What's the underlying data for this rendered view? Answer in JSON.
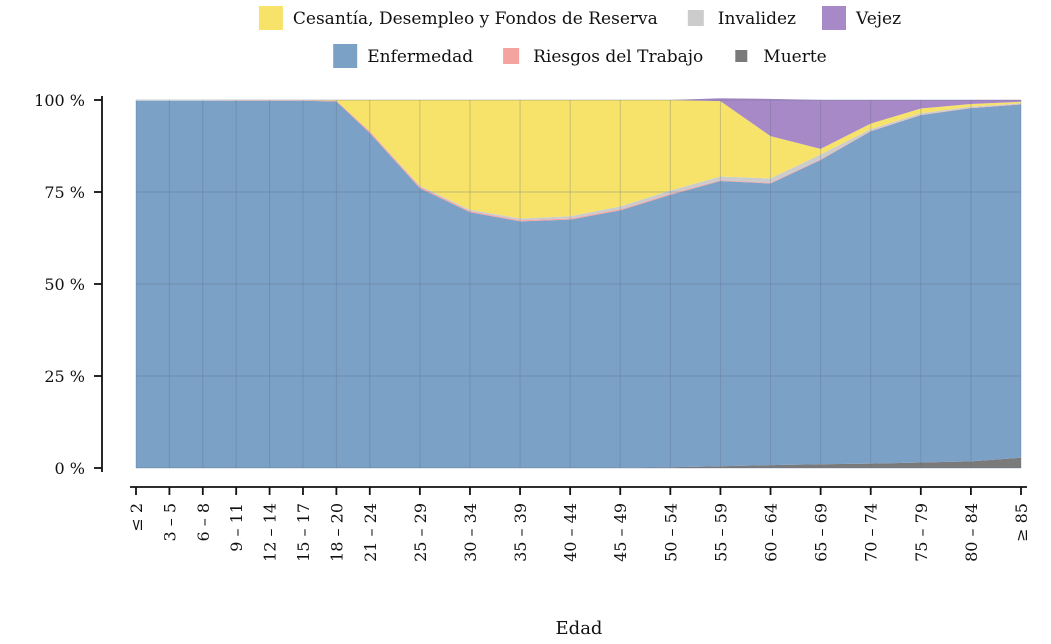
{
  "chart_data": {
    "type": "area",
    "xlabel": "Edad",
    "ylabel": "",
    "ylim": [
      0,
      100
    ],
    "y_ticks": [
      "0 %",
      "25 %",
      "50 %",
      "75 %",
      "100 %"
    ],
    "y_tick_values": [
      0,
      25,
      50,
      75,
      100
    ],
    "grid": true,
    "legend_position": "top",
    "categories": [
      "≤ 2",
      "3 – 5",
      "6 – 8",
      "9 – 11",
      "12 – 14",
      "15 – 17",
      "18 – 20",
      "21 – 24",
      "25 – 29",
      "30 – 34",
      "35 – 39",
      "40 – 44",
      "45 – 49",
      "50 – 54",
      "55 – 59",
      "60 – 64",
      "65 – 69",
      "70 – 74",
      "75 – 79",
      "80 – 84",
      "≥ 85"
    ],
    "x_positions": [
      0,
      1,
      2,
      3,
      4,
      5,
      6,
      7,
      8.5,
      10,
      11.5,
      13,
      14.5,
      16,
      17.5,
      19,
      20.5,
      22,
      23.5,
      25,
      26.5
    ],
    "legend_rows": [
      [
        "Cesantía, Desempleo y Fondos de Reserva",
        "Invalidez",
        "Vejez"
      ],
      [
        "Enfermedad",
        "Riesgos del Trabajo",
        "Muerte"
      ]
    ],
    "series": [
      {
        "name": "Muerte",
        "color": "#7a7a7a",
        "values": [
          0,
          0,
          0,
          0,
          0,
          0,
          0,
          0,
          0,
          0,
          0,
          0,
          0,
          0.2,
          0.5,
          0.8,
          1,
          1.2,
          1.5,
          1.8,
          2.8
        ]
      },
      {
        "name": "Enfermedad",
        "color": "#7ba1c7",
        "values": [
          99.8,
          99.8,
          99.8,
          99.8,
          99.8,
          99.8,
          99.6,
          91,
          76,
          69.5,
          67,
          67.5,
          70,
          74,
          77.5,
          76.5,
          82.7,
          90.3,
          94.4,
          96,
          96
        ]
      },
      {
        "name": "Riesgos del Trabajo",
        "color": "#f5a3a0",
        "values": [
          0,
          0,
          0,
          0.1,
          0.1,
          0.1,
          0.2,
          0.5,
          0.4,
          0.3,
          0.3,
          0.3,
          0.3,
          0.3,
          0.2,
          0.2,
          0.2,
          0.1,
          0.1,
          0.1,
          0.1
        ]
      },
      {
        "name": "Invalidez",
        "color": "#cccccc",
        "values": [
          0,
          0,
          0,
          0,
          0,
          0,
          0,
          0,
          0.3,
          0.4,
          0.5,
          0.6,
          0.8,
          0.9,
          1,
          1.2,
          1.3,
          0.5,
          0.4,
          0.3,
          0.2
        ]
      },
      {
        "name": "Cesantía, Desempleo y Fondos de Reserva",
        "color": "#f7e36a",
        "values": [
          0,
          0,
          0,
          0,
          0,
          0,
          0.2,
          8.5,
          23.3,
          29.8,
          32.2,
          31.6,
          28.9,
          24.6,
          20.5,
          11.5,
          1.5,
          1.5,
          1.3,
          0.7,
          0.4
        ]
      },
      {
        "name": "Vejez",
        "color": "#a889c7",
        "values": [
          0,
          0,
          0,
          0,
          0,
          0,
          0,
          0,
          0,
          0,
          0,
          0,
          0,
          0,
          0.8,
          10.1,
          13.3,
          6.4,
          2.3,
          1.1,
          0.5
        ]
      }
    ]
  }
}
